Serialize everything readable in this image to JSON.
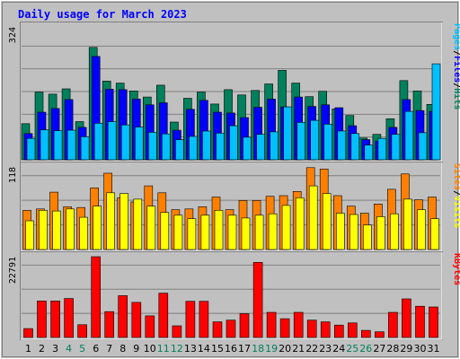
{
  "title": "Daily usage for March 2023",
  "colors": {
    "background": "#C0C0C0",
    "plot_background": "#C0C0C0",
    "hits": "#00805C",
    "files": "#0000FF",
    "pages": "#00C0FF",
    "visits": "#FF8000",
    "sites": "#FFFF00",
    "kbytes": "#FF0000",
    "title": "#0000FF",
    "weekend_day": "#00805C",
    "weekday_day": "#000000"
  },
  "chart_data": {
    "type": "bar",
    "days": [
      1,
      2,
      3,
      4,
      5,
      6,
      7,
      8,
      9,
      10,
      11,
      12,
      13,
      14,
      15,
      16,
      17,
      18,
      19,
      20,
      21,
      22,
      23,
      24,
      25,
      26,
      27,
      28,
      29,
      30,
      31
    ],
    "weekend_days": [
      4,
      5,
      11,
      12,
      18,
      19,
      25,
      26
    ],
    "panels": [
      {
        "id": "top",
        "ymax": 324,
        "ymax_label": "324",
        "ylabel_parts": [
          "Pages",
          "/",
          "Files",
          "/",
          "Hits"
        ],
        "series": [
          {
            "name": "Hits",
            "values": [
              88,
              165,
              160,
              173,
              93,
              274,
              192,
              187,
              168,
              153,
              182,
              92,
              150,
              165,
              136,
              171,
              158,
              169,
              185,
              218,
              187,
              154,
              167,
              124,
              108,
              53,
              62,
              100,
              193,
              168,
              135
            ]
          },
          {
            "name": "Files",
            "values": [
              64,
              116,
              125,
              147,
              79,
              252,
              172,
              171,
              148,
              134,
              139,
              72,
              123,
              145,
              116,
              114,
              103,
              128,
              148,
              129,
              153,
              130,
              134,
              127,
              83,
              49,
              46,
              79,
              147,
              120,
              118
            ]
          },
          {
            "name": "Pages",
            "values": [
              52,
              73,
              71,
              72,
              56,
              89,
              93,
              85,
              80,
              67,
              63,
              49,
              57,
              70,
              65,
              83,
              55,
              62,
              68,
              129,
              91,
              96,
              87,
              70,
              64,
              36,
              52,
              62,
              118,
              66,
              234
            ]
          }
        ]
      },
      {
        "id": "middle",
        "ymax": 118,
        "ymax_label": "118",
        "ylabel_parts": [
          "Sites",
          "/",
          "Visits"
        ],
        "series": [
          {
            "name": "Visits",
            "values": [
              56,
              58,
              82,
              61,
              60,
              88,
              109,
              74,
              68,
              91,
              81,
              57,
              58,
              61,
              75,
              57,
              70,
              70,
              76,
              77,
              83,
              117,
              115,
              77,
              62,
              52,
              65,
              86,
              108,
              71,
              75
            ]
          },
          {
            "name": "Sites",
            "values": [
              41,
              56,
              55,
              58,
              46,
              62,
              81,
              80,
              72,
              62,
              53,
              49,
              44,
              49,
              56,
              49,
              45,
              49,
              51,
              63,
              74,
              91,
              80,
              52,
              50,
              35,
              47,
              51,
              72,
              57,
              44
            ]
          }
        ]
      },
      {
        "id": "bottom",
        "ymax": 22791,
        "ymax_label": "22791",
        "ylabel_parts": [
          "KBytes"
        ],
        "series": [
          {
            "name": "KBytes",
            "values": [
              2500,
              10300,
              10300,
              11000,
              3600,
              22791,
              7300,
              11800,
              9900,
              6100,
              12500,
              3300,
              10200,
              10200,
              4400,
              4900,
              6700,
              21200,
              7100,
              5300,
              7100,
              4900,
              4400,
              3500,
              4100,
              2000,
              1600,
              7100,
              10900,
              8800,
              8600
            ]
          }
        ]
      }
    ]
  }
}
